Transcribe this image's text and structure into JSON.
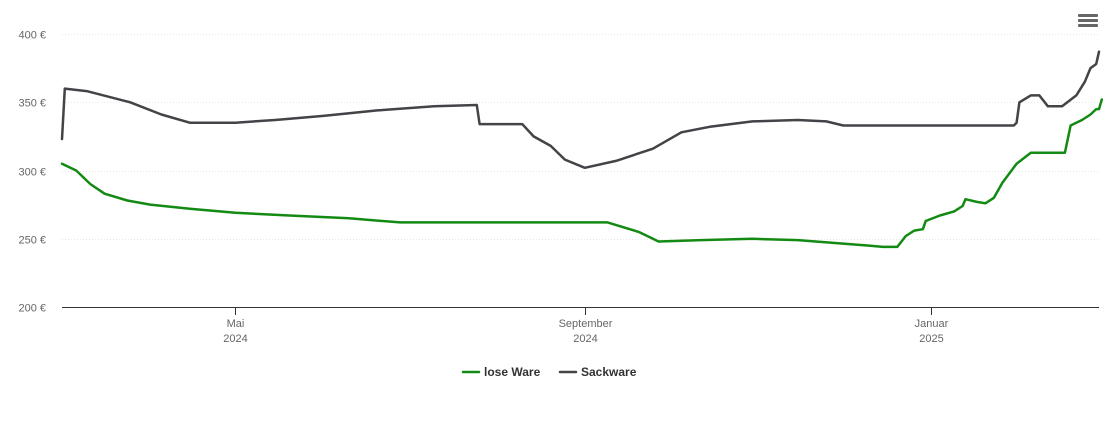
{
  "toolbar": {
    "menu_icon": "hamburger-menu-icon"
  },
  "chart_data": {
    "type": "line",
    "title": "",
    "xlabel": "",
    "ylabel": "",
    "ylim": [
      200,
      400
    ],
    "xlim": [
      "2024-03-01",
      "2025-03-01"
    ],
    "grid": true,
    "legend_placement": "bottom-center",
    "y_ticks": [
      {
        "value": 200,
        "label": "200 €"
      },
      {
        "value": 250,
        "label": "250 €"
      },
      {
        "value": 300,
        "label": "300 €"
      },
      {
        "value": 350,
        "label": "350 €"
      },
      {
        "value": 400,
        "label": "400 €"
      }
    ],
    "x_ticks": [
      {
        "date": "2024-05-01",
        "month": "Mai",
        "year": "2024"
      },
      {
        "date": "2024-09-01",
        "month": "September",
        "year": "2024"
      },
      {
        "date": "2025-01-01",
        "month": "Januar",
        "year": "2025"
      }
    ],
    "series": [
      {
        "name": "lose Ware",
        "color": "#138a13",
        "points": [
          [
            "2024-03-01",
            305
          ],
          [
            "2024-03-06",
            300
          ],
          [
            "2024-03-11",
            290
          ],
          [
            "2024-03-16",
            283
          ],
          [
            "2024-03-24",
            278
          ],
          [
            "2024-04-01",
            275
          ],
          [
            "2024-04-15",
            272
          ],
          [
            "2024-05-01",
            269
          ],
          [
            "2024-05-20",
            267
          ],
          [
            "2024-06-10",
            265
          ],
          [
            "2024-06-28",
            262
          ],
          [
            "2024-07-30",
            262
          ],
          [
            "2024-08-30",
            262
          ],
          [
            "2024-09-09",
            262
          ],
          [
            "2024-09-20",
            255
          ],
          [
            "2024-09-27",
            248
          ],
          [
            "2024-10-12",
            249
          ],
          [
            "2024-10-30",
            250
          ],
          [
            "2024-11-15",
            249
          ],
          [
            "2024-12-10",
            245
          ],
          [
            "2024-12-15",
            244
          ],
          [
            "2024-12-20",
            244
          ],
          [
            "2024-12-23",
            252
          ],
          [
            "2024-12-26",
            256
          ],
          [
            "2024-12-29",
            257
          ],
          [
            "2024-12-30",
            263
          ],
          [
            "2025-01-04",
            267
          ],
          [
            "2025-01-09",
            270
          ],
          [
            "2025-01-12",
            274
          ],
          [
            "2025-01-13",
            279
          ],
          [
            "2025-01-17",
            277
          ],
          [
            "2025-01-20",
            276
          ],
          [
            "2025-01-23",
            280
          ],
          [
            "2025-01-26",
            291
          ],
          [
            "2025-01-31",
            305
          ],
          [
            "2025-02-05",
            313
          ],
          [
            "2025-02-13",
            313
          ],
          [
            "2025-02-17",
            313
          ],
          [
            "2025-02-19",
            333
          ],
          [
            "2025-02-23",
            337
          ],
          [
            "2025-02-26",
            341
          ],
          [
            "2025-02-28",
            345
          ],
          [
            "2025-03-01",
            345
          ],
          [
            "2025-03-02",
            352
          ]
        ]
      },
      {
        "name": "Sackware",
        "color": "#434348",
        "points": [
          [
            "2024-03-01",
            323
          ],
          [
            "2024-03-02",
            360
          ],
          [
            "2024-03-10",
            358
          ],
          [
            "2024-03-25",
            350
          ],
          [
            "2024-04-05",
            341
          ],
          [
            "2024-04-15",
            335
          ],
          [
            "2024-05-01",
            335
          ],
          [
            "2024-05-15",
            337
          ],
          [
            "2024-06-01",
            340
          ],
          [
            "2024-06-20",
            344
          ],
          [
            "2024-07-10",
            347
          ],
          [
            "2024-07-25",
            348
          ],
          [
            "2024-07-26",
            334
          ],
          [
            "2024-08-02",
            334
          ],
          [
            "2024-08-10",
            334
          ],
          [
            "2024-08-14",
            325
          ],
          [
            "2024-08-20",
            318
          ],
          [
            "2024-08-25",
            308
          ],
          [
            "2024-09-01",
            302
          ],
          [
            "2024-09-12",
            307
          ],
          [
            "2024-09-25",
            316
          ],
          [
            "2024-10-05",
            328
          ],
          [
            "2024-10-15",
            332
          ],
          [
            "2024-10-30",
            336
          ],
          [
            "2024-11-15",
            337
          ],
          [
            "2024-11-25",
            336
          ],
          [
            "2024-12-01",
            333
          ],
          [
            "2024-12-15",
            333
          ],
          [
            "2025-01-01",
            333
          ],
          [
            "2025-01-20",
            333
          ],
          [
            "2025-01-30",
            333
          ],
          [
            "2025-01-31",
            335
          ],
          [
            "2025-02-01",
            350
          ],
          [
            "2025-02-05",
            355
          ],
          [
            "2025-02-08",
            355
          ],
          [
            "2025-02-11",
            347
          ],
          [
            "2025-02-16",
            347
          ],
          [
            "2025-02-21",
            355
          ],
          [
            "2025-02-24",
            365
          ],
          [
            "2025-02-26",
            375
          ],
          [
            "2025-02-28",
            378
          ],
          [
            "2025-03-01",
            387
          ]
        ]
      }
    ]
  }
}
